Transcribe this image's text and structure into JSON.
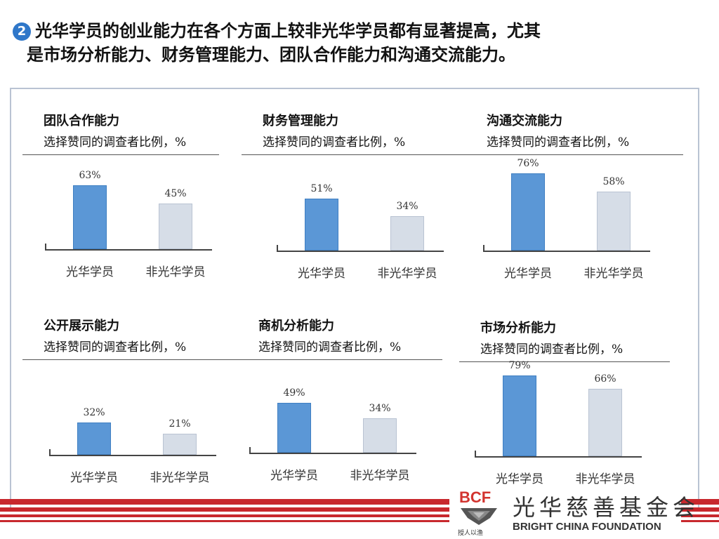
{
  "heading": {
    "badge": "2",
    "line1": "光华学员的创业能力在各个方面上较非光华学员都有显著提高，尤其",
    "line2": "是市场分析能力、财务管理能力、团队合作能力和沟通交流能力。"
  },
  "subtitle": "选择赞同的调查者比例，%",
  "categories": [
    "光华学员",
    "非光华学员"
  ],
  "chart_data": [
    {
      "type": "bar",
      "title": "团队合作能力",
      "subtitle": "选择赞同的调查者比例，%",
      "categories": [
        "光华学员",
        "非光华学员"
      ],
      "values": [
        63,
        45
      ],
      "labels": [
        "63%",
        "45%"
      ]
    },
    {
      "type": "bar",
      "title": "财务管理能力",
      "subtitle": "选择赞同的调查者比例，%",
      "categories": [
        "光华学员",
        "非光华学员"
      ],
      "values": [
        51,
        34
      ],
      "labels": [
        "51%",
        "34%"
      ]
    },
    {
      "type": "bar",
      "title": "沟通交流能力",
      "subtitle": "选择赞同的调查者比例，%",
      "categories": [
        "光华学员",
        "非光华学员"
      ],
      "values": [
        76,
        58
      ],
      "labels": [
        "76%",
        "58%"
      ]
    },
    {
      "type": "bar",
      "title": "公开展示能力",
      "subtitle": "选择赞同的调查者比例，%",
      "categories": [
        "光华学员",
        "非光华学员"
      ],
      "values": [
        32,
        21
      ],
      "labels": [
        "32%",
        "21%"
      ]
    },
    {
      "type": "bar",
      "title": "商机分析能力",
      "subtitle": "选择赞同的调查者比例，%",
      "categories": [
        "光华学员",
        "非光华学员"
      ],
      "values": [
        49,
        34
      ],
      "labels": [
        "49%",
        "34%"
      ]
    },
    {
      "type": "bar",
      "title": "市场分析能力",
      "subtitle": "选择赞同的调查者比例，%",
      "categories": [
        "光华学员",
        "非光华学员"
      ],
      "values": [
        79,
        66
      ],
      "labels": [
        "79%",
        "66%"
      ]
    }
  ],
  "colors": {
    "guanghua": "#5b97d6",
    "non_guanghua": "#d6dde7",
    "stripe": "#c8282d",
    "frame": "#b9c3d3"
  },
  "logo": {
    "mark": "BCF",
    "cn": "光华慈善基金会",
    "en": "BRIGHT CHINA FOUNDATION",
    "tagline": "授人以渔"
  }
}
